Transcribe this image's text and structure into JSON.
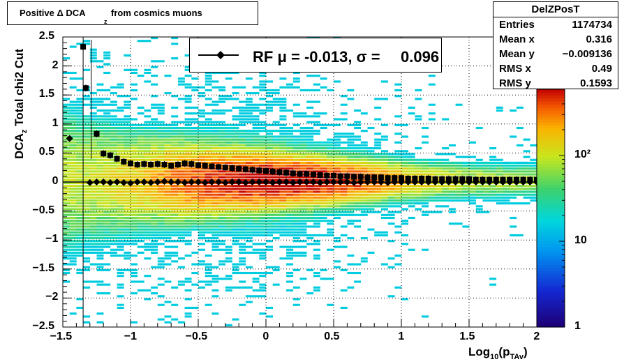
{
  "title": {
    "main": "Positive Δ DCA",
    "sub": "z",
    "end": " from cosmics muons"
  },
  "stats": {
    "name": "DelZPosT",
    "rows": [
      {
        "label": "Entries",
        "value": "1174734"
      },
      {
        "label": "Mean x",
        "value": "0.316"
      },
      {
        "label": "Mean y",
        "value": "−0.009136"
      },
      {
        "label": "RMS x",
        "value": "0.49"
      },
      {
        "label": "RMS y",
        "value": "0.1593"
      }
    ]
  },
  "legend": {
    "text": "RF μ = -0.013, σ =",
    "value": "0.096"
  },
  "axes": {
    "x_title_main": "Log",
    "x_title_sub1": "10",
    "x_title_mid": "(p",
    "x_title_sub2": "TAv",
    "x_title_end": ")",
    "y_title": "DCA",
    "y_title_sub": "z",
    "y_title_end": "  Total chi2 Cut"
  },
  "chart_data": {
    "type": "heatmap",
    "x_range": [
      -1.5,
      2
    ],
    "y_range": [
      -2.5,
      2.5
    ],
    "x_ticks": [
      "−1.5",
      "−1",
      "−0.5",
      "0",
      "0.5",
      "1",
      "1.5",
      "2"
    ],
    "y_ticks": [
      "2.5",
      "2",
      "1.5",
      "1",
      "0.5",
      "0",
      "−0.5",
      "−1",
      "−1.5",
      "−2",
      "−2.5"
    ],
    "z_scale": "log",
    "z_ticks": [
      "1",
      "10",
      "10²"
    ],
    "colormap": "rainbow",
    "grid": true,
    "series": [
      {
        "name": "",
        "marker": "square",
        "x": [
          -1.35,
          -1.33,
          -1.25,
          -1.2,
          -1.15,
          -1.1,
          -1.05,
          -1.0,
          -0.95,
          -0.9,
          -0.85,
          -0.8,
          -0.75,
          -0.7,
          -0.65,
          -0.6,
          -0.55,
          -0.5,
          -0.45,
          -0.4,
          -0.35,
          -0.3,
          -0.25,
          -0.2,
          -0.15,
          -0.1,
          -0.05,
          0.0,
          0.05,
          0.1,
          0.15,
          0.2,
          0.25,
          0.3,
          0.35,
          0.4,
          0.45,
          0.5,
          0.55,
          0.6,
          0.65,
          0.7,
          0.75,
          0.8,
          0.85,
          0.9,
          0.95,
          1.0,
          1.05,
          1.1,
          1.15,
          1.2,
          1.25,
          1.3,
          1.35,
          1.4,
          1.45,
          1.5,
          1.55,
          1.6,
          1.65,
          1.7,
          1.75,
          1.8,
          1.85,
          1.9,
          1.95,
          2.0
        ],
        "y": [
          2.33,
          1.62,
          0.83,
          0.49,
          0.46,
          0.4,
          0.35,
          0.32,
          0.3,
          0.31,
          0.3,
          0.31,
          0.3,
          0.28,
          0.3,
          0.32,
          0.31,
          0.29,
          0.28,
          0.27,
          0.26,
          0.25,
          0.24,
          0.23,
          0.22,
          0.21,
          0.2,
          0.19,
          0.18,
          0.17,
          0.16,
          0.15,
          0.14,
          0.14,
          0.13,
          0.12,
          0.11,
          0.11,
          0.1,
          0.1,
          0.09,
          0.09,
          0.08,
          0.08,
          0.08,
          0.07,
          0.07,
          0.07,
          0.06,
          0.06,
          0.06,
          0.06,
          0.05,
          0.05,
          0.05,
          0.05,
          0.05,
          0.05,
          0.04,
          0.04,
          0.04,
          0.04,
          0.04,
          0.04,
          0.04,
          0.04,
          0.04,
          0.04
        ]
      },
      {
        "name": "RF μ = -0.013, σ = 0.096",
        "marker": "diamond",
        "x": [
          -1.45,
          -1.3,
          -1.25,
          -1.2,
          -1.15,
          -1.1,
          -1.05,
          -1.0,
          -0.95,
          -0.9,
          -0.85,
          -0.8,
          -0.75,
          -0.7,
          -0.65,
          -0.6,
          -0.55,
          -0.5,
          -0.45,
          -0.4,
          -0.35,
          -0.3,
          -0.25,
          -0.2,
          -0.15,
          -0.1,
          -0.05,
          0.0,
          0.05,
          0.1,
          0.15,
          0.2,
          0.25,
          0.3,
          0.35,
          0.4,
          0.45,
          0.5,
          0.55,
          0.6,
          0.65,
          0.7,
          0.75,
          0.8,
          0.85,
          0.9,
          0.95,
          1.0,
          1.05,
          1.1,
          1.15,
          1.2,
          1.25,
          1.3,
          1.35,
          1.4,
          1.45,
          1.5,
          1.55,
          1.6,
          1.65,
          1.7,
          1.75,
          1.8,
          1.85,
          1.9,
          1.95,
          2.0
        ],
        "y": [
          0.75,
          -0.01,
          0.0,
          0.0,
          -0.01,
          0.0,
          -0.01,
          -0.02,
          0.0,
          0.0,
          -0.01,
          0.0,
          0.01,
          0.0,
          0.0,
          -0.01,
          0.0,
          0.0,
          -0.01,
          0.0,
          0.0,
          -0.01,
          0.0,
          0.0,
          -0.01,
          0.0,
          0.0,
          0.0,
          -0.01,
          0.0,
          0.0,
          -0.01,
          0.0,
          0.0,
          0.0,
          -0.01,
          0.0,
          0.0,
          0.0,
          0.0,
          -0.01,
          0.0,
          0.0,
          0.0,
          0.0,
          -0.01,
          0.0,
          0.0,
          0.0,
          0.0,
          0.0,
          0.0,
          0.0,
          0.0,
          0.0,
          0.0,
          0.0,
          0.0,
          0.0,
          0.0,
          0.0,
          0.0,
          0.0,
          0.0,
          0.0,
          0.0,
          0.0,
          0.0
        ]
      }
    ]
  }
}
